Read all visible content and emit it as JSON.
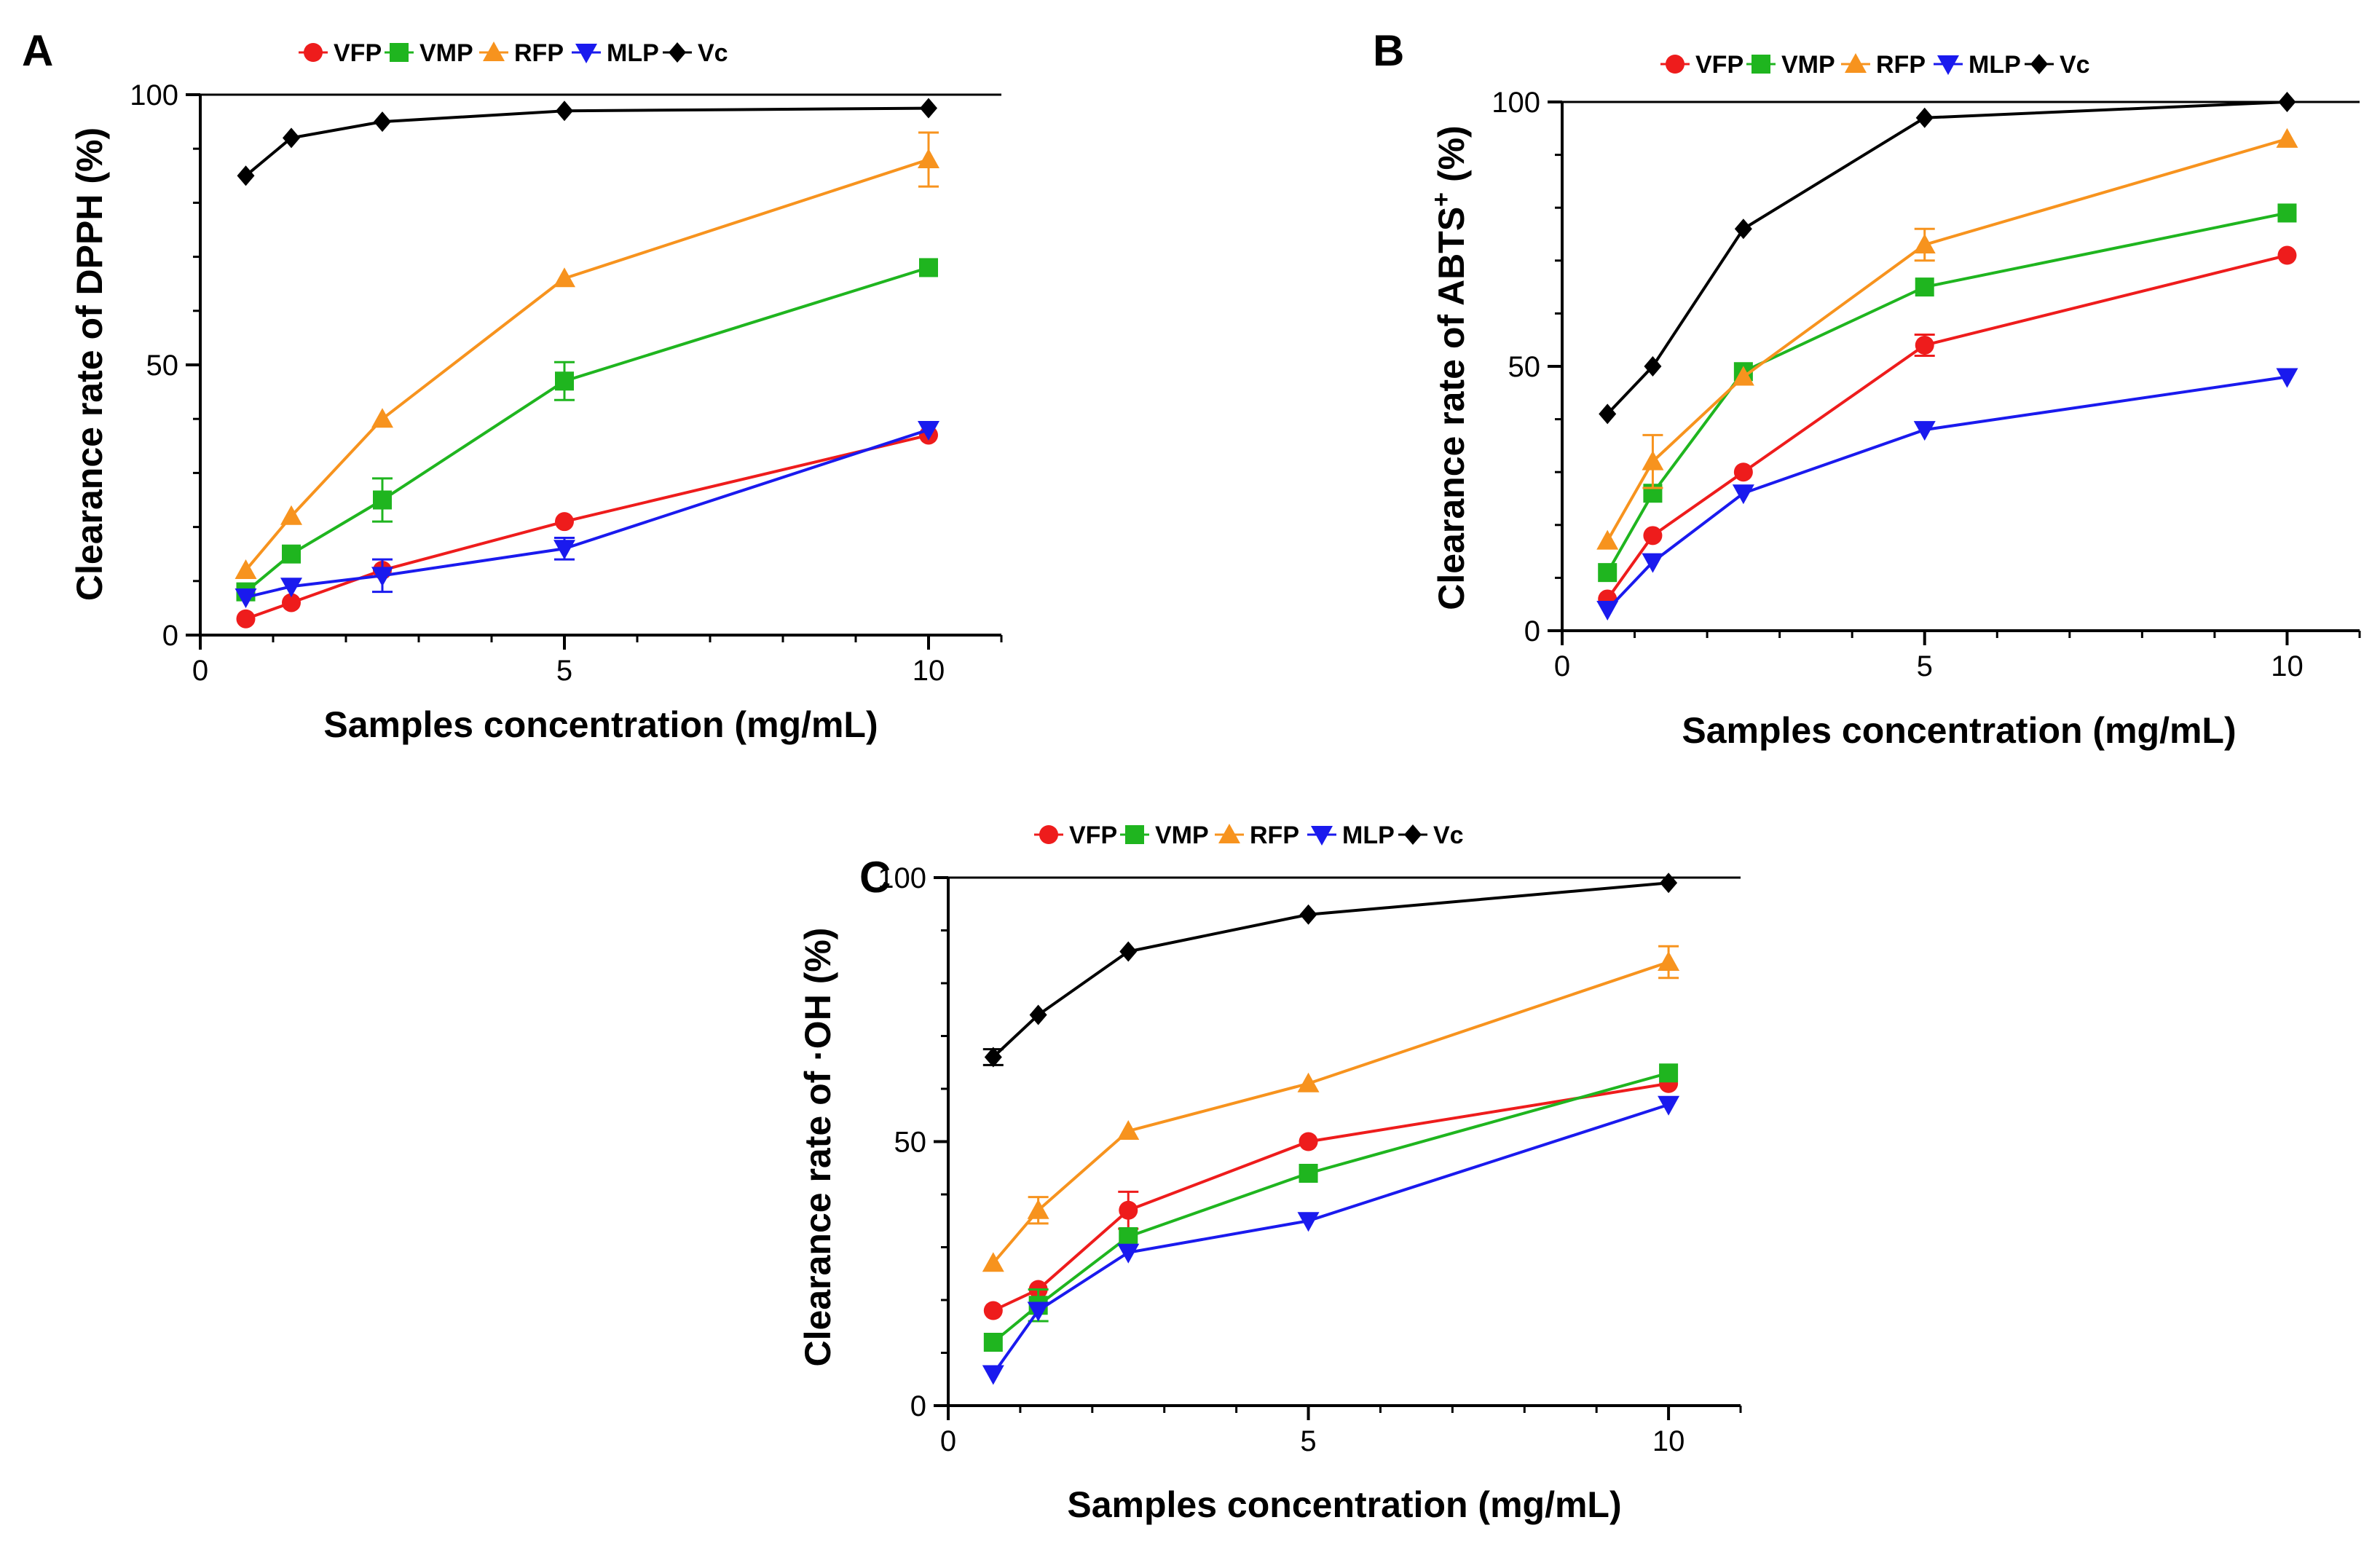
{
  "colors": {
    "VFP": "#ee1c1c",
    "VMP": "#1fb51f",
    "RFP": "#f7931e",
    "MLP": "#1a1aee",
    "Vc": "#000000"
  },
  "chart_data": [
    {
      "panel": "A",
      "type": "line",
      "xlabel": "Samples concentration (mg/mL)",
      "ylabel": "Clearance rate of DPPH (%)",
      "xlim": [
        0,
        11
      ],
      "ylim": [
        0,
        100
      ],
      "xticks": [
        "0",
        "5",
        "10"
      ],
      "yticks": [
        "0",
        "50",
        "100"
      ],
      "legend_position": "top",
      "x": [
        0.625,
        1.25,
        2.5,
        5,
        10
      ],
      "series": [
        {
          "name": "VFP",
          "marker": "circle",
          "values": [
            3,
            6,
            12,
            21,
            37
          ],
          "err": [
            0,
            0,
            0,
            0,
            0
          ]
        },
        {
          "name": "VMP",
          "marker": "square",
          "values": [
            8,
            15,
            25,
            47,
            68
          ],
          "err": [
            0,
            0,
            4,
            3.5,
            0
          ]
        },
        {
          "name": "RFP",
          "marker": "triangle-up",
          "values": [
            12,
            22,
            40,
            66,
            88
          ],
          "err": [
            0,
            0,
            0,
            0,
            5
          ]
        },
        {
          "name": "MLP",
          "marker": "triangle-down",
          "values": [
            7,
            9,
            11,
            16,
            38
          ],
          "err": [
            0,
            0,
            3,
            2,
            0
          ]
        },
        {
          "name": "Vc",
          "marker": "diamond",
          "values": [
            85,
            92,
            95,
            97,
            97.5
          ],
          "err": [
            0,
            0,
            0,
            0,
            0
          ]
        }
      ]
    },
    {
      "panel": "B",
      "type": "line",
      "xlabel": "Samples concentration (mg/mL)",
      "ylabel": "Clearance rate of ABTS",
      "ylabel_sup": "+",
      "ylabel_suffix": " (%)",
      "xlim": [
        0,
        11
      ],
      "ylim": [
        0,
        100
      ],
      "xticks": [
        "0",
        "5",
        "10"
      ],
      "yticks": [
        "0",
        "50",
        "100"
      ],
      "legend_position": "top",
      "x": [
        0.625,
        1.25,
        2.5,
        5,
        10
      ],
      "series": [
        {
          "name": "VFP",
          "marker": "circle",
          "values": [
            6,
            18,
            30,
            54,
            71
          ],
          "err": [
            0,
            0,
            0,
            2,
            0
          ]
        },
        {
          "name": "VMP",
          "marker": "square",
          "values": [
            11,
            26,
            49,
            65,
            79
          ],
          "err": [
            0,
            0,
            0,
            0,
            0
          ]
        },
        {
          "name": "RFP",
          "marker": "triangle-up",
          "values": [
            17,
            32,
            48,
            73,
            93
          ],
          "err": [
            0,
            5,
            0,
            3,
            0
          ]
        },
        {
          "name": "MLP",
          "marker": "triangle-down",
          "values": [
            4,
            13,
            26,
            38,
            48
          ],
          "err": [
            0,
            0,
            0,
            0,
            0
          ]
        },
        {
          "name": "Vc",
          "marker": "diamond",
          "values": [
            41,
            50,
            76,
            97,
            100
          ],
          "err": [
            0,
            0,
            0,
            0,
            0
          ]
        }
      ]
    },
    {
      "panel": "C",
      "type": "line",
      "xlabel": "Samples concentration (mg/mL)",
      "ylabel": "Clearance rate of ·OH (%)",
      "xlim": [
        0,
        11
      ],
      "ylim": [
        0,
        100
      ],
      "xticks": [
        "0",
        "5",
        "10"
      ],
      "yticks": [
        "0",
        "50",
        "100"
      ],
      "legend_position": "top",
      "x": [
        0.625,
        1.25,
        2.5,
        5,
        10
      ],
      "series": [
        {
          "name": "VFP",
          "marker": "circle",
          "values": [
            18,
            22,
            37,
            50,
            61
          ],
          "err": [
            0,
            0,
            3.5,
            0,
            0
          ]
        },
        {
          "name": "VMP",
          "marker": "square",
          "values": [
            12,
            19,
            32,
            44,
            63
          ],
          "err": [
            0,
            3,
            0,
            0,
            0
          ]
        },
        {
          "name": "RFP",
          "marker": "triangle-up",
          "values": [
            27,
            37,
            52,
            61,
            84
          ],
          "err": [
            0,
            2.5,
            0,
            0,
            3
          ]
        },
        {
          "name": "MLP",
          "marker": "triangle-down",
          "values": [
            6,
            18,
            29,
            35,
            57
          ],
          "err": [
            0,
            0,
            0,
            0,
            0
          ]
        },
        {
          "name": "Vc",
          "marker": "diamond",
          "values": [
            66,
            74,
            86,
            93,
            99
          ],
          "err": [
            1.5,
            0,
            0,
            0,
            0
          ]
        }
      ]
    }
  ]
}
